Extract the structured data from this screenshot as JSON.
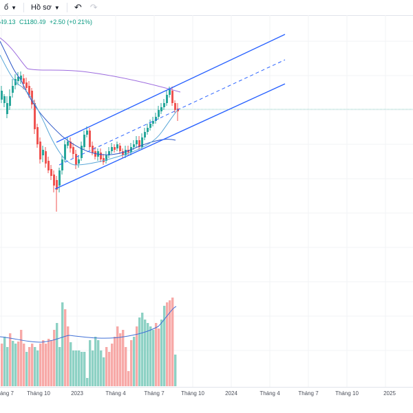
{
  "toolbar": {
    "item1_label": "ổ",
    "item2_label": "Hồ sơ",
    "undo_icon": "undo-icon",
    "redo_icon": "redo-icon"
  },
  "legend": {
    "low_text": "49.13",
    "close_text": "C1180.49",
    "change_text": "+2.50 (+0.21%)",
    "color": "#089981"
  },
  "colors": {
    "up": "#26a69a",
    "down": "#ef5350",
    "vol_up": "#8dd1c4",
    "vol_down": "#f7a9a7",
    "channel": "#2962ff",
    "ma_purple": "#9c6ade",
    "ma_blue": "#2a55c7",
    "ma_light": "#5aa7d8"
  },
  "x_axis": {
    "labels": [
      "áng 7",
      "Tháng 10",
      "2023",
      "Tháng 4",
      "Tháng 7",
      "Tháng 10",
      "2024",
      "Tháng 4",
      "Tháng 7",
      "Tháng 10",
      "2025"
    ]
  }
}
